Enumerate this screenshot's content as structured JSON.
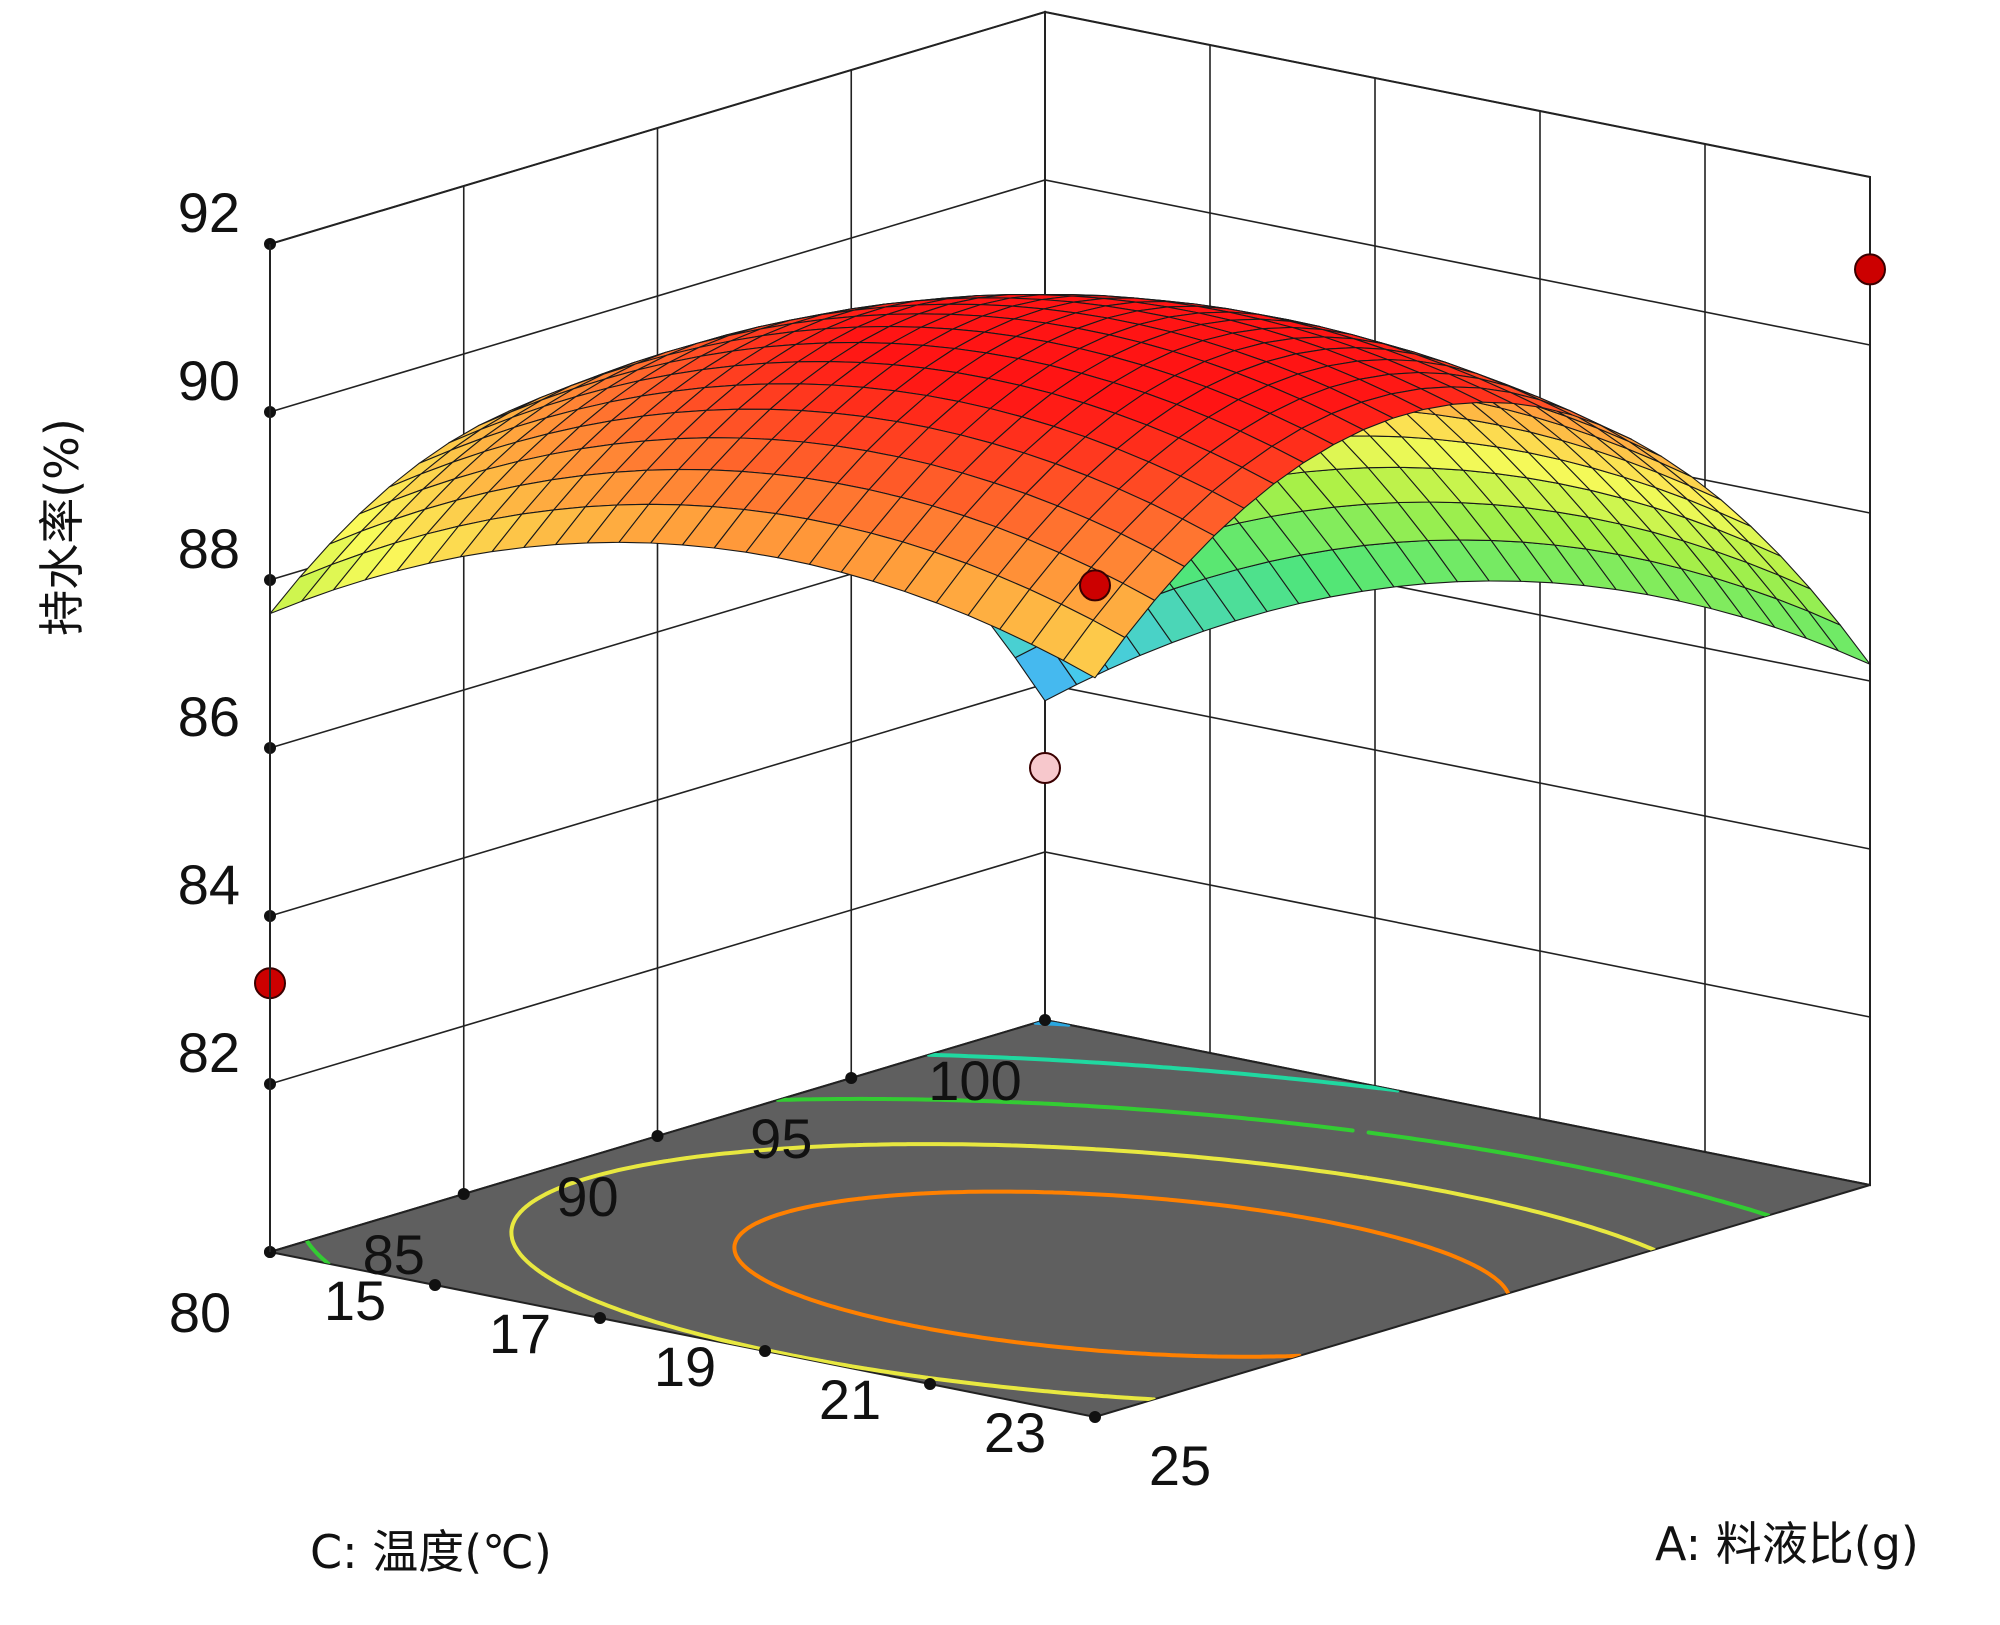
{
  "chart_data": {
    "type": "surface3d",
    "title": "",
    "zlabel": "持水率(%)",
    "xlabel": "A: 料液比(g)",
    "ylabel": "C: 温度(℃)",
    "z_ticks": [
      "82",
      "84",
      "86",
      "88",
      "90",
      "92"
    ],
    "x_ticks": [
      "15",
      "17",
      "19",
      "21",
      "23",
      "25"
    ],
    "y_ticks": [
      "80",
      "85",
      "90",
      "95",
      "100"
    ],
    "zlim": [
      80,
      92
    ],
    "xlim": [
      15,
      25
    ],
    "ylim": [
      80,
      100
    ],
    "model": {
      "description": "quadratic response surface",
      "intercept": 91.0,
      "a_linear": 0.9,
      "c_linear": -1.6,
      "a_quad": -1.2,
      "c_quad": -3.2,
      "ac_inter": 0.3
    },
    "design_points": [
      {
        "a": 15,
        "c": 100,
        "z": 83.0,
        "color": "#f7c8cc"
      },
      {
        "a": 15,
        "c": 80,
        "z": 83.2,
        "color": "#cc0000"
      },
      {
        "a": 25,
        "c": 100,
        "z": 90.9,
        "color": "#cc0000"
      },
      {
        "a": 25,
        "c": 80,
        "z": 89.9,
        "color": "#cc0000"
      }
    ],
    "contour_levels": [
      {
        "z": 84,
        "color": "#2aa7e0"
      },
      {
        "z": 86,
        "color": "#20d8a0"
      },
      {
        "z": 88,
        "color": "#33cc33"
      },
      {
        "z": 89.5,
        "color": "#e8e840"
      },
      {
        "z": 90.6,
        "color": "#ff8000"
      }
    ],
    "floor_color": "#5f5f5f"
  }
}
